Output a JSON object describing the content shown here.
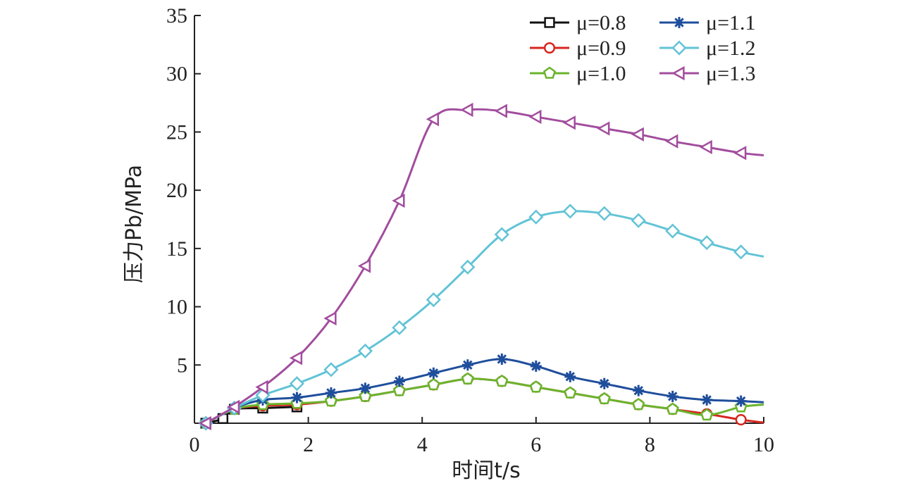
{
  "chart_data": {
    "type": "line",
    "xlabel": "时间t/s",
    "ylabel": "压力Pb/MPa",
    "xlim": [
      0,
      10
    ],
    "ylim": [
      0,
      35
    ],
    "xticks": [
      0,
      2,
      4,
      6,
      8,
      10
    ],
    "yticks": [
      5,
      10,
      15,
      20,
      25,
      30,
      35
    ],
    "grid": false,
    "legend_position": "top-right",
    "series": [
      {
        "name": "μ=0.8",
        "color": "#111111",
        "marker": "square",
        "x": [
          0.2,
          0.5,
          0.7,
          1.2,
          1.8
        ],
        "y": [
          0,
          0.4,
          1.2,
          1.3,
          1.4
        ]
      },
      {
        "name": "μ=0.9",
        "color": "#d7261e",
        "marker": "circle",
        "x": [
          0.2,
          0.7,
          1.2,
          1.8,
          2.4,
          3.0,
          3.6,
          4.2,
          4.8,
          5.4,
          6.0,
          6.6,
          7.2,
          7.8,
          8.4,
          9.0,
          9.6,
          10.0
        ],
        "y": [
          0,
          1.2,
          1.5,
          1.6,
          1.9,
          2.3,
          2.8,
          3.3,
          3.8,
          3.6,
          3.1,
          2.6,
          2.1,
          1.6,
          1.2,
          0.8,
          0.3,
          0.05
        ]
      },
      {
        "name": "μ=1.0",
        "color": "#6ab42d",
        "marker": "pentagon",
        "x": [
          0.2,
          0.7,
          1.2,
          1.8,
          2.4,
          3.0,
          3.6,
          4.2,
          4.8,
          5.4,
          6.0,
          6.6,
          7.2,
          7.8,
          8.4,
          9.0,
          9.6,
          10.0
        ],
        "y": [
          0,
          1.2,
          1.6,
          1.7,
          1.9,
          2.3,
          2.8,
          3.3,
          3.8,
          3.6,
          3.1,
          2.6,
          2.1,
          1.6,
          1.2,
          0.7,
          1.4,
          1.6
        ]
      },
      {
        "name": "μ=1.1",
        "color": "#1f4e9c",
        "marker": "asterisk",
        "x": [
          0.2,
          0.7,
          1.2,
          1.8,
          2.4,
          3.0,
          3.6,
          4.2,
          4.8,
          5.4,
          6.0,
          6.6,
          7.2,
          7.8,
          8.4,
          9.0,
          9.6,
          10.0
        ],
        "y": [
          0,
          1.3,
          2.0,
          2.2,
          2.6,
          3.0,
          3.6,
          4.3,
          5.0,
          5.5,
          4.9,
          4.0,
          3.4,
          2.8,
          2.3,
          2.0,
          1.9,
          1.8
        ]
      },
      {
        "name": "μ=1.2",
        "color": "#62c3d6",
        "marker": "diamond",
        "x": [
          0.2,
          0.7,
          1.2,
          1.8,
          2.4,
          3.0,
          3.6,
          4.2,
          4.8,
          5.4,
          6.0,
          6.6,
          7.2,
          7.8,
          8.4,
          9.0,
          9.6,
          10.0
        ],
        "y": [
          0,
          1.3,
          2.4,
          3.4,
          4.6,
          6.2,
          8.2,
          10.6,
          13.4,
          16.2,
          17.7,
          18.2,
          18.0,
          17.4,
          16.5,
          15.5,
          14.7,
          14.3
        ]
      },
      {
        "name": "μ=1.3",
        "color": "#a24d9e",
        "marker": "triangle-left",
        "x": [
          0.2,
          0.7,
          1.2,
          1.8,
          2.4,
          3.0,
          3.6,
          4.2,
          4.8,
          5.4,
          6.0,
          6.6,
          7.2,
          7.8,
          8.4,
          9.0,
          9.6,
          10.0
        ],
        "y": [
          0,
          1.4,
          3.1,
          5.6,
          9.0,
          13.5,
          19.1,
          26.1,
          26.9,
          26.8,
          26.3,
          25.8,
          25.3,
          24.8,
          24.2,
          23.7,
          23.2,
          23.0
        ]
      }
    ]
  }
}
